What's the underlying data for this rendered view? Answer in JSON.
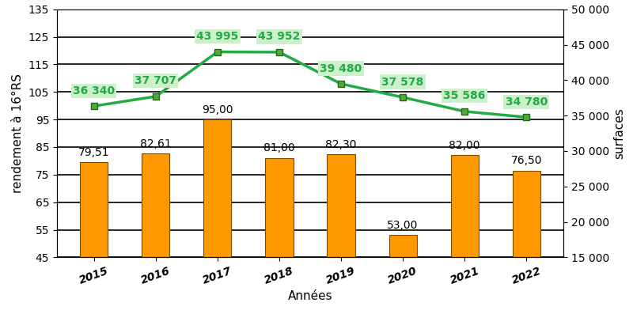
{
  "chart_data": {
    "type": "bar",
    "x_label": "Années",
    "y_label": "rendement à 16°RS",
    "y2_label": "surfaces",
    "categories": [
      "2015",
      "2016",
      "2017",
      "2018",
      "2019",
      "2020",
      "2021",
      "2022"
    ],
    "ylim": [
      45,
      135
    ],
    "yticks": [
      45,
      55,
      65,
      75,
      85,
      95,
      105,
      115,
      125,
      135
    ],
    "y2lim": [
      15000,
      50000
    ],
    "y2ticks": [
      {
        "value": 15000,
        "label": "15 000"
      },
      {
        "value": 20000,
        "label": "20 000"
      },
      {
        "value": 25000,
        "label": "25 000"
      },
      {
        "value": 30000,
        "label": "30 000"
      },
      {
        "value": 35000,
        "label": "35 000"
      },
      {
        "value": 40000,
        "label": "40 000"
      },
      {
        "value": 45000,
        "label": "45 000"
      },
      {
        "value": 50000,
        "label": "50 000"
      }
    ],
    "grid": true,
    "data_labels": true,
    "series": [
      {
        "type": "bar",
        "color": "#ff9900",
        "values": [
          79.51,
          82.61,
          95.0,
          81.0,
          82.3,
          53.0,
          82.0,
          76.5
        ],
        "value_labels": [
          "79,51",
          "82,61",
          "95,00",
          "81,00",
          "82,30",
          "53,00",
          "82,00",
          "76,50"
        ]
      },
      {
        "type": "line",
        "axis": "y2",
        "color": "#22aa44",
        "marker": "square",
        "values": [
          36340,
          37707,
          43995,
          43952,
          39480,
          37578,
          35586,
          34780
        ],
        "value_labels": [
          "36 340",
          "37 707",
          "43 995",
          "43 952",
          "39 480",
          "37 578",
          "35 586",
          "34 780"
        ]
      }
    ]
  }
}
